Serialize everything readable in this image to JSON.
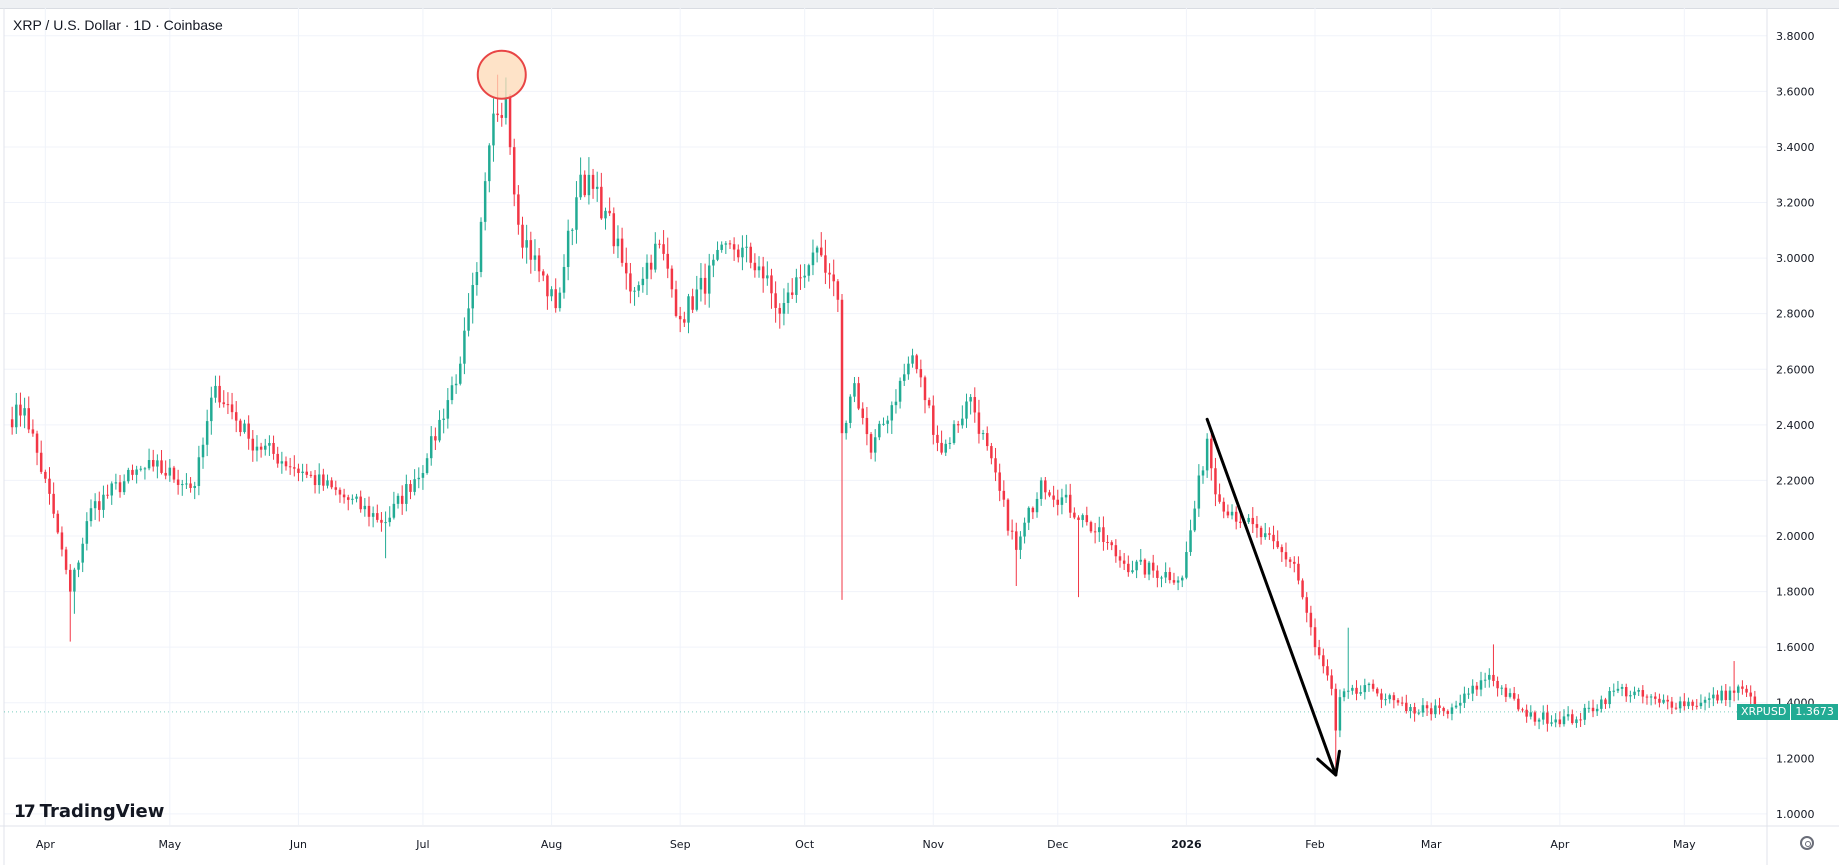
{
  "header": {
    "title": "XRP / U.S. Dollar · 1D · Coinbase"
  },
  "brand": {
    "logo_text": "TradingView",
    "logo_mark": "17"
  },
  "price_tag": {
    "symbol": "XRPUSD",
    "value": "1.3673"
  },
  "colors": {
    "up": "#22ab94",
    "down": "#f23645",
    "grid": "#f0f3fa",
    "text": "#131722",
    "highlight_fill": "#fdd9b5",
    "highlight_stroke": "#e84545",
    "arrow": "#000000"
  },
  "chart_data": {
    "type": "candlestick",
    "title": "XRP / U.S. Dollar · 1D · Coinbase",
    "xlabel": "",
    "ylabel": "",
    "ylim": [
      0.96,
      3.9
    ],
    "y_ticks": [
      "3.8000",
      "3.6000",
      "3.4000",
      "3.2000",
      "3.0000",
      "2.8000",
      "2.6000",
      "2.4000",
      "2.2000",
      "2.0000",
      "1.8000",
      "1.6000",
      "1.4000",
      "1.2000",
      "1.0000"
    ],
    "x_ticks": [
      {
        "label": "Apr",
        "date": "2025-04-01"
      },
      {
        "label": "May",
        "date": "2025-05-01"
      },
      {
        "label": "Jun",
        "date": "2025-06-01"
      },
      {
        "label": "Jul",
        "date": "2025-07-01"
      },
      {
        "label": "Aug",
        "date": "2025-08-01"
      },
      {
        "label": "Sep",
        "date": "2025-09-01"
      },
      {
        "label": "Oct",
        "date": "2025-10-01"
      },
      {
        "label": "Nov",
        "date": "2025-11-01"
      },
      {
        "label": "Dec",
        "date": "2025-12-01"
      },
      {
        "label": "2026",
        "date": "2026-01-01"
      },
      {
        "label": "Feb",
        "date": "2026-02-01"
      },
      {
        "label": "Mar",
        "date": "2026-03-01"
      },
      {
        "label": "Apr",
        "date": "2026-04-01"
      },
      {
        "label": "May",
        "date": "2026-05-01"
      }
    ],
    "date_range": [
      "2025-03-23",
      "2026-05-19"
    ],
    "close_anchors": [
      [
        "2025-03-23",
        2.42
      ],
      [
        "2025-03-27",
        2.46
      ],
      [
        "2025-04-03",
        2.08
      ],
      [
        "2025-04-07",
        1.8
      ],
      [
        "2025-04-12",
        2.1
      ],
      [
        "2025-04-22",
        2.22
      ],
      [
        "2025-04-27",
        2.25
      ],
      [
        "2025-05-07",
        2.18
      ],
      [
        "2025-05-12",
        2.54
      ],
      [
        "2025-05-20",
        2.35
      ],
      [
        "2025-06-03",
        2.22
      ],
      [
        "2025-06-13",
        2.13
      ],
      [
        "2025-06-22",
        2.05
      ],
      [
        "2025-07-02",
        2.28
      ],
      [
        "2025-07-10",
        2.62
      ],
      [
        "2025-07-14",
        2.95
      ],
      [
        "2025-07-18",
        3.52
      ],
      [
        "2025-07-21",
        3.58
      ],
      [
        "2025-07-24",
        3.12
      ],
      [
        "2025-08-02",
        2.82
      ],
      [
        "2025-08-08",
        3.3
      ],
      [
        "2025-08-14",
        3.17
      ],
      [
        "2025-08-20",
        2.88
      ],
      [
        "2025-08-27",
        3.05
      ],
      [
        "2025-09-01",
        2.78
      ],
      [
        "2025-09-13",
        3.05
      ],
      [
        "2025-09-20",
        2.97
      ],
      [
        "2025-09-25",
        2.8
      ],
      [
        "2025-10-03",
        3.02
      ],
      [
        "2025-10-09",
        2.85
      ],
      [
        "2025-10-10",
        2.37
      ],
      [
        "2025-10-13",
        2.55
      ],
      [
        "2025-10-17",
        2.3
      ],
      [
        "2025-10-27",
        2.65
      ],
      [
        "2025-11-03",
        2.3
      ],
      [
        "2025-11-10",
        2.5
      ],
      [
        "2025-11-21",
        1.95
      ],
      [
        "2025-11-27",
        2.2
      ],
      [
        "2025-12-08",
        2.05
      ],
      [
        "2025-12-17",
        1.9
      ],
      [
        "2025-12-31",
        1.85
      ],
      [
        "2026-01-06",
        2.35
      ],
      [
        "2026-01-08",
        2.15
      ],
      [
        "2026-01-15",
        2.05
      ],
      [
        "2026-01-27",
        1.9
      ],
      [
        "2026-02-01",
        1.6
      ],
      [
        "2026-02-05",
        1.45
      ],
      [
        "2026-02-06",
        1.3
      ],
      [
        "2026-02-07",
        1.42
      ],
      [
        "2026-02-15",
        1.45
      ],
      [
        "2026-02-23",
        1.37
      ],
      [
        "2026-02-28",
        1.38
      ],
      [
        "2026-03-05",
        1.36
      ],
      [
        "2026-03-15",
        1.5
      ],
      [
        "2026-03-24",
        1.35
      ],
      [
        "2026-04-05",
        1.34
      ],
      [
        "2026-04-15",
        1.45
      ],
      [
        "2026-04-25",
        1.4
      ],
      [
        "2026-05-05",
        1.4
      ],
      [
        "2026-05-15",
        1.45
      ],
      [
        "2026-05-19",
        1.3673
      ]
    ],
    "extreme_wicks": [
      [
        "2025-04-07",
        1.62
      ],
      [
        "2025-04-08",
        1.72
      ],
      [
        "2025-06-22",
        1.92
      ],
      [
        "2025-07-19",
        3.66
      ],
      [
        "2025-07-21",
        3.65
      ],
      [
        "2025-10-10",
        1.77
      ],
      [
        "2025-11-21",
        1.82
      ],
      [
        "2025-12-06",
        1.78
      ],
      [
        "2026-02-06",
        1.14
      ],
      [
        "2026-02-09",
        1.67
      ],
      [
        "2026-03-16",
        1.61
      ],
      [
        "2026-05-13",
        1.55
      ]
    ],
    "last_price": 1.3673,
    "annotations": [
      {
        "type": "circle",
        "date": "2025-07-20",
        "price": 3.66
      },
      {
        "type": "arrow",
        "from": {
          "date": "2026-01-06",
          "price": 2.42
        },
        "to": {
          "date": "2026-02-06",
          "price": 1.14
        }
      }
    ],
    "grid": true,
    "legend": "none"
  }
}
